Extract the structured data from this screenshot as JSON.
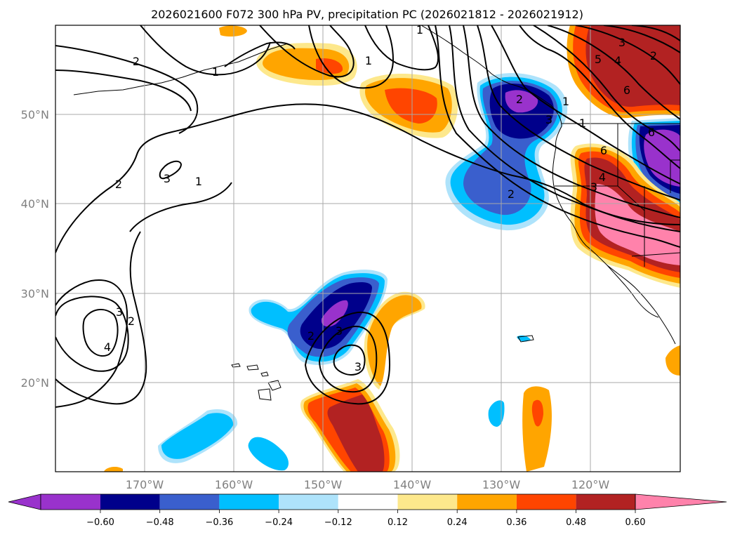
{
  "title": "2026021600 F072 300 hPa PV, precipitation PC (2026021812 - 2026021912)",
  "map": {
    "projection": "lat-lon",
    "lon_range": [
      -180,
      -110
    ],
    "lat_range": [
      10,
      60
    ],
    "lat_labels": [
      "50°N",
      "40°N",
      "30°N",
      "20°N"
    ],
    "lon_labels": [
      "170°W",
      "160°W",
      "150°W",
      "140°W",
      "130°W",
      "120°W"
    ],
    "contour_labels": [
      "2",
      "3",
      "1",
      "2",
      "1",
      "1",
      "2",
      "3",
      "4",
      "3",
      "2",
      "3",
      "2",
      "1",
      "3",
      "1",
      "2",
      "6",
      "4",
      "3",
      "5",
      "4",
      "6",
      "2",
      "3",
      "6",
      "1"
    ]
  },
  "colorbar": {
    "colors": [
      "#9932cc",
      "#00008b",
      "#3a5fcd",
      "#00bfff",
      "#aee3fb",
      "#ffffff",
      "#fde88c",
      "#ffa500",
      "#ff4500",
      "#b22222",
      "#ff82ab"
    ],
    "ticks": [
      "−0.60",
      "−0.48",
      "−0.36",
      "−0.24",
      "−0.12",
      "0.12",
      "0.24",
      "0.36",
      "0.48",
      "0.60"
    ]
  }
}
